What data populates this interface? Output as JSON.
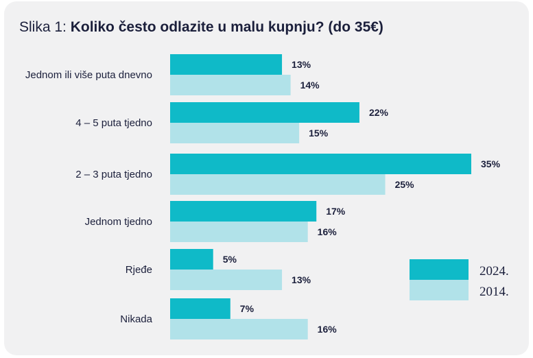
{
  "title": {
    "prefix": "Slika 1: ",
    "main": "Koliko često odlazite u malu kupnju? (do 35€)"
  },
  "chart_data": {
    "type": "bar",
    "orientation": "horizontal",
    "categories": [
      "Jednom ili više puta dnevno",
      "4 – 5 puta tjedno",
      "2 – 3 puta tjedno",
      "Jednom tjedno",
      "Rjeđe",
      "Nikada"
    ],
    "series": [
      {
        "name": "2024.",
        "color": "#0fbac8",
        "values": [
          13,
          22,
          35,
          17,
          5,
          7
        ],
        "labels": [
          "13%",
          "22%",
          "35%",
          "17%",
          "5%",
          "7%"
        ]
      },
      {
        "name": "2014.",
        "color": "#b1e2e9",
        "values": [
          14,
          15,
          25,
          16,
          13,
          16
        ],
        "labels": [
          "14%",
          "15%",
          "25%",
          "16%",
          "13%",
          "16%"
        ]
      }
    ],
    "xlim": [
      0,
      35
    ],
    "unit": "%",
    "grid": false,
    "legend": "bottom-right"
  }
}
